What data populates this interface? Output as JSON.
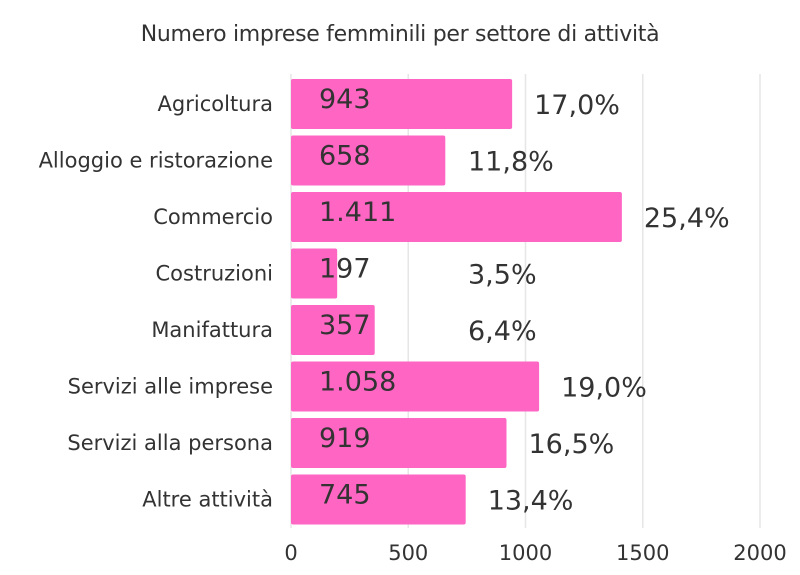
{
  "chart_data": {
    "type": "bar",
    "orientation": "horizontal",
    "title": "Numero imprese femminili per settore di attività",
    "xlabel": "",
    "ylabel": "",
    "categories": [
      "Agricoltura",
      "Alloggio e ristorazione",
      "Commercio",
      "Costruzioni",
      "Manifattura",
      "Servizi alle imprese",
      "Servizi alla persona",
      "Altre attività"
    ],
    "values": [
      943,
      658,
      1411,
      197,
      357,
      1058,
      919,
      745
    ],
    "value_labels": [
      "943",
      "658",
      "1.411",
      "197",
      "357",
      "1.058",
      "919",
      "745"
    ],
    "percent_labels": [
      "17,0%",
      "11,8%",
      "25,4%",
      "3,5%",
      "6,4%",
      "19,0%",
      "16,5%",
      "13,4%"
    ],
    "xlim": [
      0,
      2000
    ],
    "xticks": [
      0,
      500,
      1000,
      1500,
      2000
    ],
    "xtick_labels": [
      "0",
      "500",
      "1000",
      "1500",
      "2000"
    ],
    "grid": "vertical",
    "legend": "none",
    "bar_color": "#ff66c4",
    "text_color": "#333333",
    "grid_color": "#e6e6e6"
  }
}
